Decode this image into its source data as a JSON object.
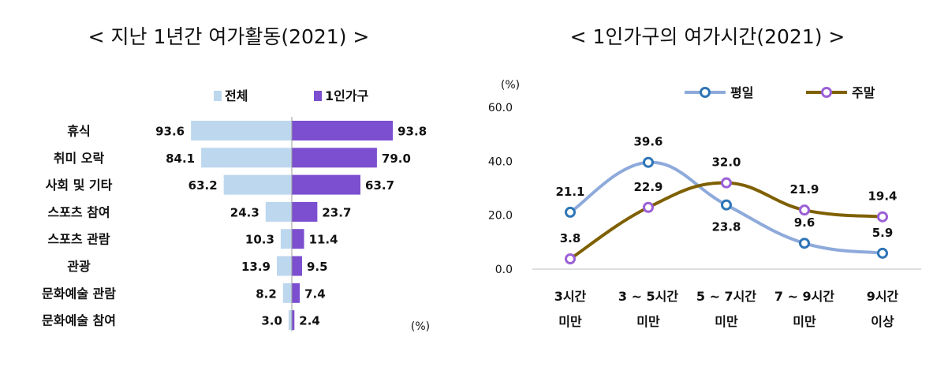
{
  "chart_data": [
    {
      "type": "bar",
      "title": "< 지난 1년간 여가활동(2021) >",
      "unit": "(%)",
      "categories": [
        "휴식",
        "취미 오락",
        "사회 및 기타",
        "스포츠 참여",
        "스포츠 관람",
        "관광",
        "문화예술 관람",
        "문화예술 참여"
      ],
      "series": [
        {
          "name": "전체",
          "color": "#bdd7ee",
          "values": [
            93.6,
            84.1,
            63.2,
            24.3,
            10.3,
            13.9,
            8.2,
            3.0
          ]
        },
        {
          "name": "1인가구",
          "color": "#7b4fd0",
          "values": [
            93.8,
            79.0,
            63.7,
            23.7,
            11.4,
            9.5,
            7.4,
            2.4
          ]
        }
      ],
      "orientation": "horizontal-diverging",
      "legend_position": "top"
    },
    {
      "type": "line",
      "title": "< 1인가구의 여가시간(2021) >",
      "ylabel": "(%)",
      "ylim": [
        0,
        60
      ],
      "yticks": [
        "0.0",
        "20.0",
        "40.0",
        "60.0"
      ],
      "categories": [
        [
          "3시간",
          "미만"
        ],
        [
          "3 ~ 5시간",
          "미만"
        ],
        [
          "5 ~ 7시간",
          "미만"
        ],
        [
          "7 ~ 9시간",
          "미만"
        ],
        [
          "9시간",
          "이상"
        ]
      ],
      "series": [
        {
          "name": "평일",
          "color": "#8eaadb",
          "values": [
            21.1,
            39.6,
            23.8,
            9.6,
            5.9
          ]
        },
        {
          "name": "주말",
          "color": "#7f6000",
          "values": [
            3.8,
            22.9,
            32.0,
            21.9,
            19.4
          ]
        }
      ],
      "labels": {
        "평일": [
          "21.1",
          "39.6",
          "23.8",
          "9.6",
          "5.9"
        ],
        "주말": [
          "3.8",
          "22.9",
          "32.0",
          "21.9",
          "19.4"
        ]
      },
      "grid": false,
      "legend_position": "top"
    }
  ]
}
